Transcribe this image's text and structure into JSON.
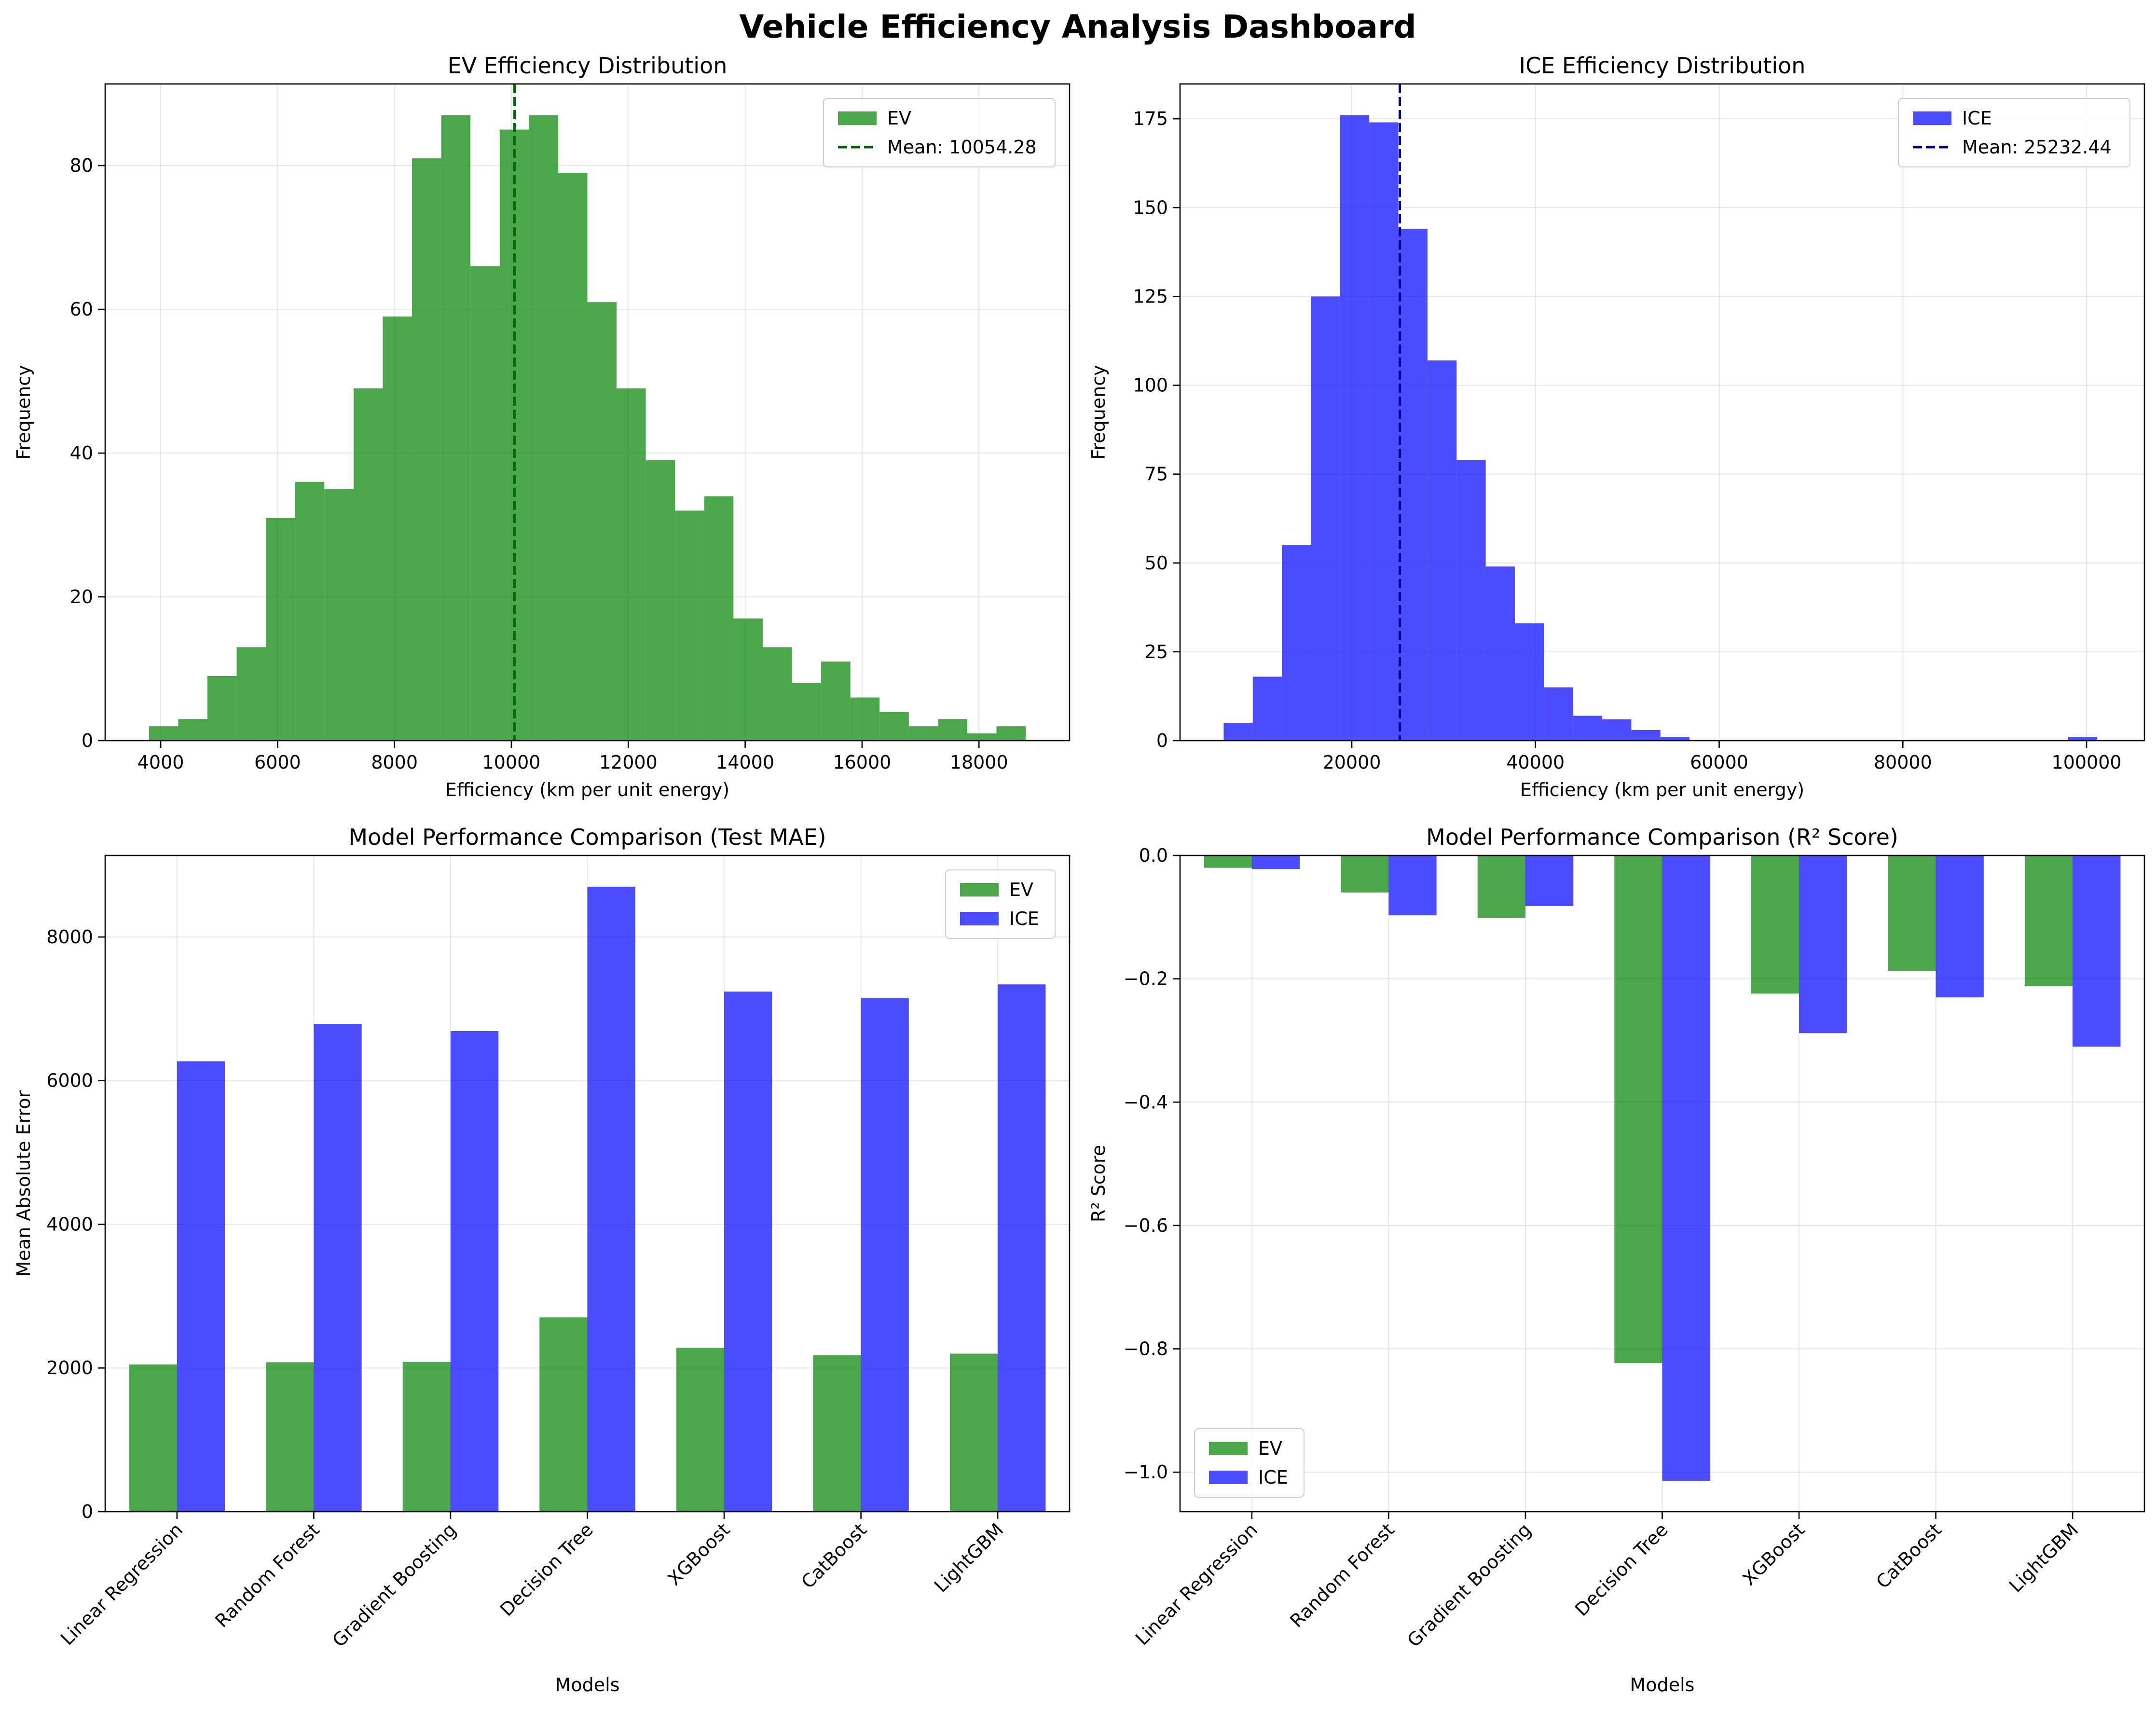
{
  "page_title": "Vehicle Efficiency Analysis Dashboard",
  "colors": {
    "ev": "#008000",
    "ice": "#0000ff",
    "ev_mean": "#006400",
    "ice_mean": "#00008b",
    "grid": "#b0b0b0"
  },
  "chart_data": [
    {
      "type": "bar",
      "subtype": "histogram",
      "title": "EV Efficiency Distribution",
      "xlabel": "Efficiency (km per unit energy)",
      "ylabel": "Frequency",
      "xlim": [
        3050,
        19550
      ],
      "ylim": [
        0,
        91.35
      ],
      "xticks": [
        4000,
        6000,
        8000,
        10000,
        12000,
        14000,
        16000,
        18000
      ],
      "yticks": [
        0,
        20,
        40,
        60,
        80
      ],
      "grid": true,
      "legend_position": "top-right",
      "bin_start": 3800,
      "bin_width": 500,
      "series": [
        {
          "name": "EV",
          "color": "#008000",
          "alpha": 0.7,
          "values": [
            2,
            3,
            9,
            13,
            31,
            36,
            35,
            49,
            59,
            81,
            87,
            66,
            85,
            87,
            79,
            61,
            49,
            39,
            32,
            34,
            17,
            13,
            8,
            11,
            6,
            4,
            2,
            3,
            1,
            2
          ]
        }
      ],
      "mean_line": {
        "value": 10054.28,
        "label": "Mean: 10054.28",
        "color": "#006400"
      }
    },
    {
      "type": "bar",
      "subtype": "histogram",
      "title": "ICE Efficiency Distribution",
      "xlabel": "Efficiency (km per unit energy)",
      "ylabel": "Frequency",
      "xlim": [
        1300,
        106300
      ],
      "ylim": [
        0,
        184.8
      ],
      "xticks": [
        20000,
        40000,
        60000,
        80000,
        100000
      ],
      "yticks": [
        0,
        25,
        50,
        75,
        100,
        125,
        150,
        175
      ],
      "grid": true,
      "legend_position": "top-right",
      "bin_start": 6050,
      "bin_width": 3170,
      "series": [
        {
          "name": "ICE",
          "color": "#0000ff",
          "alpha": 0.7,
          "values": [
            5,
            18,
            55,
            125,
            176,
            174,
            144,
            107,
            79,
            49,
            33,
            15,
            7,
            6,
            3,
            1,
            0,
            0,
            0,
            0,
            0,
            0,
            0,
            0,
            0,
            0,
            0,
            0,
            0,
            1
          ]
        }
      ],
      "mean_line": {
        "value": 25232.44,
        "label": "Mean: 25232.44",
        "color": "#00008b"
      }
    },
    {
      "type": "bar",
      "title": "Model Performance Comparison (Test MAE)",
      "xlabel": "Models",
      "ylabel": "Mean Absolute Error",
      "ylim": [
        0,
        9135
      ],
      "yticks": [
        0,
        2000,
        4000,
        6000,
        8000
      ],
      "grid": true,
      "legend_position": "top-right",
      "categories": [
        "Linear Regression",
        "Random Forest",
        "Gradient Boosting",
        "Decision Tree",
        "XGBoost",
        "CatBoost",
        "LightGBM"
      ],
      "series": [
        {
          "name": "EV",
          "color": "#008000",
          "alpha": 0.7,
          "values": [
            2050,
            2080,
            2085,
            2705,
            2280,
            2180,
            2200
          ]
        },
        {
          "name": "ICE",
          "color": "#0000ff",
          "alpha": 0.7,
          "values": [
            6270,
            6790,
            6690,
            8700,
            7240,
            7150,
            7340
          ]
        }
      ]
    },
    {
      "type": "bar",
      "title": "Model Performance Comparison (R² Score)",
      "xlabel": "Models",
      "ylabel": "R² Score",
      "ylim": [
        -1.064,
        0
      ],
      "yticks": [
        0.0,
        -0.2,
        -0.4,
        -0.6,
        -0.8,
        -1.0
      ],
      "ytick_labels": [
        "0.0",
        "−0.2",
        "−0.4",
        "−0.6",
        "−0.8",
        "−1.0"
      ],
      "grid": true,
      "legend_position": "bottom-left",
      "categories": [
        "Linear Regression",
        "Random Forest",
        "Gradient Boosting",
        "Decision Tree",
        "XGBoost",
        "CatBoost",
        "LightGBM"
      ],
      "series": [
        {
          "name": "EV",
          "color": "#008000",
          "alpha": 0.7,
          "values": [
            -0.02,
            -0.06,
            -0.101,
            -0.823,
            -0.224,
            -0.187,
            -0.212
          ]
        },
        {
          "name": "ICE",
          "color": "#0000ff",
          "alpha": 0.7,
          "values": [
            -0.022,
            -0.097,
            -0.082,
            -1.014,
            -0.288,
            -0.23,
            -0.31
          ]
        }
      ]
    }
  ]
}
